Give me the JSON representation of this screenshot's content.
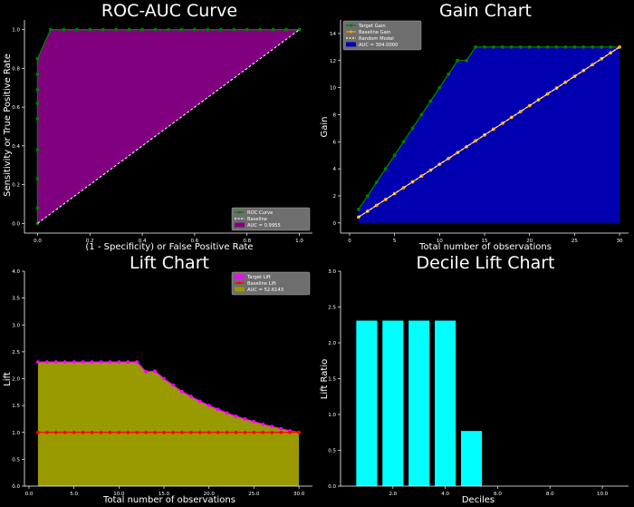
{
  "chart_data": [
    {
      "type": "area",
      "title": "ROC-AUC Curve",
      "xlabel": "(1 - Specificity) or False Positive Rate",
      "ylabel": "Sensitivity or True Positive Rate",
      "xlim": [
        -0.05,
        1.05
      ],
      "ylim": [
        -0.05,
        1.05
      ],
      "xticks": [
        0.0,
        0.2,
        0.4,
        0.6,
        0.8,
        1.0
      ],
      "yticks": [
        0.0,
        0.2,
        0.4,
        0.6,
        0.8,
        1.0
      ],
      "tick_format": 1,
      "series": [
        {
          "name": "ROC Curve",
          "color": "#008000",
          "marker": "dot",
          "fill": "#800080",
          "x": [
            0,
            0,
            0,
            0,
            0,
            0,
            0,
            0,
            0,
            0.05,
            0.1,
            0.15,
            0.2,
            0.25,
            0.3,
            0.35,
            0.4,
            0.45,
            0.5,
            0.55,
            0.6,
            0.65,
            0.7,
            0.75,
            0.8,
            0.85,
            0.9,
            0.95,
            1.0
          ],
          "y": [
            0,
            0.08,
            0.23,
            0.38,
            0.54,
            0.62,
            0.69,
            0.77,
            0.85,
            1,
            1,
            1,
            1,
            1,
            1,
            1,
            1,
            1,
            1,
            1,
            1,
            1,
            1,
            1,
            1,
            1,
            1,
            1,
            1
          ]
        },
        {
          "name": "Baseline",
          "color": "#ffffff",
          "dashed": true,
          "x": [
            0,
            1
          ],
          "y": [
            0,
            1
          ]
        }
      ],
      "legend": [
        {
          "label": "ROC Curve",
          "kind": "line",
          "color": "#008000"
        },
        {
          "label": "Baseline",
          "kind": "dash",
          "color": "#ffffff"
        },
        {
          "label": "AUC = 0.9955",
          "kind": "patch",
          "color": "#800080"
        }
      ],
      "legend_position": "bottom-right"
    },
    {
      "type": "area",
      "title": "Gain Chart",
      "xlabel": "Total number of observations",
      "ylabel": "Gain",
      "xlim": [
        -1,
        31
      ],
      "ylim": [
        -0.75,
        15
      ],
      "xticks": [
        0,
        5,
        10,
        15,
        20,
        25,
        30
      ],
      "yticks": [
        0,
        2,
        4,
        6,
        8,
        10,
        12,
        14
      ],
      "tick_format": 0,
      "series": [
        {
          "name": "Target Gain",
          "color": "#008000",
          "marker": "dot",
          "fill": "#0000b0",
          "x": [
            1,
            2,
            3,
            4,
            5,
            6,
            7,
            8,
            9,
            10,
            11,
            12,
            13,
            14,
            15,
            16,
            17,
            18,
            19,
            20,
            21,
            22,
            23,
            24,
            25,
            26,
            27,
            28,
            29,
            30
          ],
          "y": [
            1,
            2,
            3,
            4,
            5,
            6,
            7,
            8,
            9,
            10,
            11,
            12,
            12,
            13,
            13,
            13,
            13,
            13,
            13,
            13,
            13,
            13,
            13,
            13,
            13,
            13,
            13,
            13,
            13,
            13
          ]
        },
        {
          "name": "Baseline Gain",
          "color": "#ffa500",
          "marker": "dot",
          "x": [
            1,
            2,
            3,
            4,
            5,
            6,
            7,
            8,
            9,
            10,
            11,
            12,
            13,
            14,
            15,
            16,
            17,
            18,
            19,
            20,
            21,
            22,
            23,
            24,
            25,
            26,
            27,
            28,
            29,
            30
          ],
          "y": [
            0.433,
            0.867,
            1.3,
            1.733,
            2.167,
            2.6,
            3.033,
            3.467,
            3.9,
            4.333,
            4.767,
            5.2,
            5.633,
            6.067,
            6.5,
            6.933,
            7.367,
            7.8,
            8.233,
            8.667,
            9.1,
            9.533,
            9.967,
            10.4,
            10.833,
            11.267,
            11.7,
            12.133,
            12.567,
            13.0
          ]
        },
        {
          "name": "Random Model",
          "color": "#ffffff",
          "dashed": true,
          "x": [
            1,
            30
          ],
          "y": [
            0.433,
            13.0
          ]
        }
      ],
      "legend": [
        {
          "label": "Target Gain",
          "kind": "line",
          "color": "#008000"
        },
        {
          "label": "Baseline Gain",
          "kind": "line",
          "color": "#ffa500"
        },
        {
          "label": "Random Model",
          "kind": "dash",
          "color": "#ffffff"
        },
        {
          "label": "AUC = 304.0000",
          "kind": "patch",
          "color": "#0000b0"
        }
      ],
      "legend_position": "top-left"
    },
    {
      "type": "area",
      "title": "Lift Chart",
      "xlabel": "Total number of observations",
      "ylabel": "Lift",
      "xlim": [
        -0.5,
        31.5
      ],
      "ylim": [
        0,
        4
      ],
      "xticks": [
        0,
        5,
        10,
        15,
        20,
        25,
        30
      ],
      "yticks": [
        0.0,
        0.5,
        1.0,
        1.5,
        2.0,
        2.5,
        3.0,
        3.5,
        4.0
      ],
      "tick_format": 1,
      "series": [
        {
          "name": "Target Lift",
          "color": "#ff00ff",
          "marker": "dot",
          "fill": "#999900",
          "x": [
            1,
            2,
            3,
            4,
            5,
            6,
            7,
            8,
            9,
            10,
            11,
            12,
            13,
            14,
            15,
            16,
            17,
            18,
            19,
            20,
            21,
            22,
            23,
            24,
            25,
            26,
            27,
            28,
            29,
            30
          ],
          "y": [
            2.31,
            2.31,
            2.31,
            2.31,
            2.31,
            2.31,
            2.31,
            2.31,
            2.31,
            2.31,
            2.31,
            2.31,
            2.13,
            2.14,
            2.0,
            1.88,
            1.76,
            1.67,
            1.58,
            1.5,
            1.43,
            1.36,
            1.3,
            1.25,
            1.2,
            1.15,
            1.11,
            1.07,
            1.03,
            1.0
          ]
        },
        {
          "name": "Baseline Lift",
          "color": "#ff0000",
          "marker": "dot",
          "x": [
            1,
            2,
            3,
            4,
            5,
            6,
            7,
            8,
            9,
            10,
            11,
            12,
            13,
            14,
            15,
            16,
            17,
            18,
            19,
            20,
            21,
            22,
            23,
            24,
            25,
            26,
            27,
            28,
            29,
            30
          ],
          "y": [
            1,
            1,
            1,
            1,
            1,
            1,
            1,
            1,
            1,
            1,
            1,
            1,
            1,
            1,
            1,
            1,
            1,
            1,
            1,
            1,
            1,
            1,
            1,
            1,
            1,
            1,
            1,
            1,
            1,
            1
          ]
        }
      ],
      "legend": [
        {
          "label": "Target Lift",
          "kind": "patch",
          "color": "#ff00ff"
        },
        {
          "label": "Baseline Lift",
          "kind": "line",
          "color": "#ff0000"
        },
        {
          "label": "AUC = 52.6143",
          "kind": "patch",
          "color": "#999900"
        }
      ],
      "legend_position": "top-right"
    },
    {
      "type": "bar",
      "title": "Decile Lift Chart",
      "xlabel": "Deciles",
      "ylabel": "Lift Ratio",
      "xlim": [
        0,
        11
      ],
      "ylim": [
        0,
        3
      ],
      "xticks": [
        2,
        4,
        6,
        8,
        10
      ],
      "yticks": [
        0.0,
        0.5,
        1.0,
        1.5,
        2.0,
        2.5,
        3.0
      ],
      "tick_format": 1,
      "bar_color": "#00ffff",
      "bar_width": 0.8,
      "categories": [
        1,
        2,
        3,
        4,
        5
      ],
      "values": [
        2.31,
        2.31,
        2.31,
        2.31,
        0.77
      ]
    }
  ]
}
